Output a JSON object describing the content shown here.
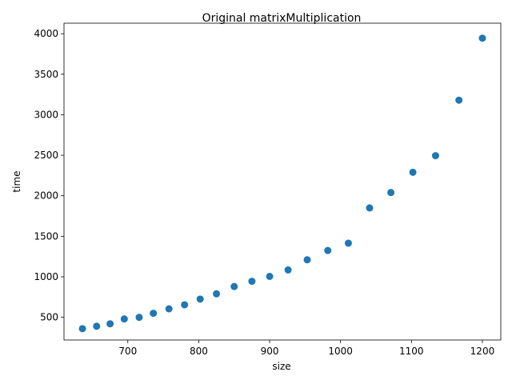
{
  "chart_data": {
    "type": "scatter",
    "title": "Original matrixMultiplication",
    "xlabel": "size",
    "ylabel": "time",
    "xlim": [
      610,
      1226
    ],
    "ylim": [
      220,
      4130
    ],
    "xticks": [
      700,
      800,
      900,
      1000,
      1100,
      1200
    ],
    "yticks": [
      500,
      1000,
      1500,
      2000,
      2500,
      3000,
      3500,
      4000
    ],
    "grid": false,
    "marker_color": "#1f77b4",
    "series": [
      {
        "x": [
          636,
          656,
          675,
          695,
          716,
          736,
          758,
          780,
          802,
          825,
          850,
          875,
          900,
          926,
          953,
          982,
          1011,
          1041,
          1071,
          1102,
          1134,
          1167,
          1200
        ],
        "y": [
          360,
          390,
          420,
          480,
          500,
          550,
          605,
          655,
          725,
          790,
          880,
          945,
          1005,
          1085,
          1210,
          1325,
          1415,
          1850,
          2040,
          2290,
          2495,
          3180,
          3945
        ]
      }
    ]
  }
}
